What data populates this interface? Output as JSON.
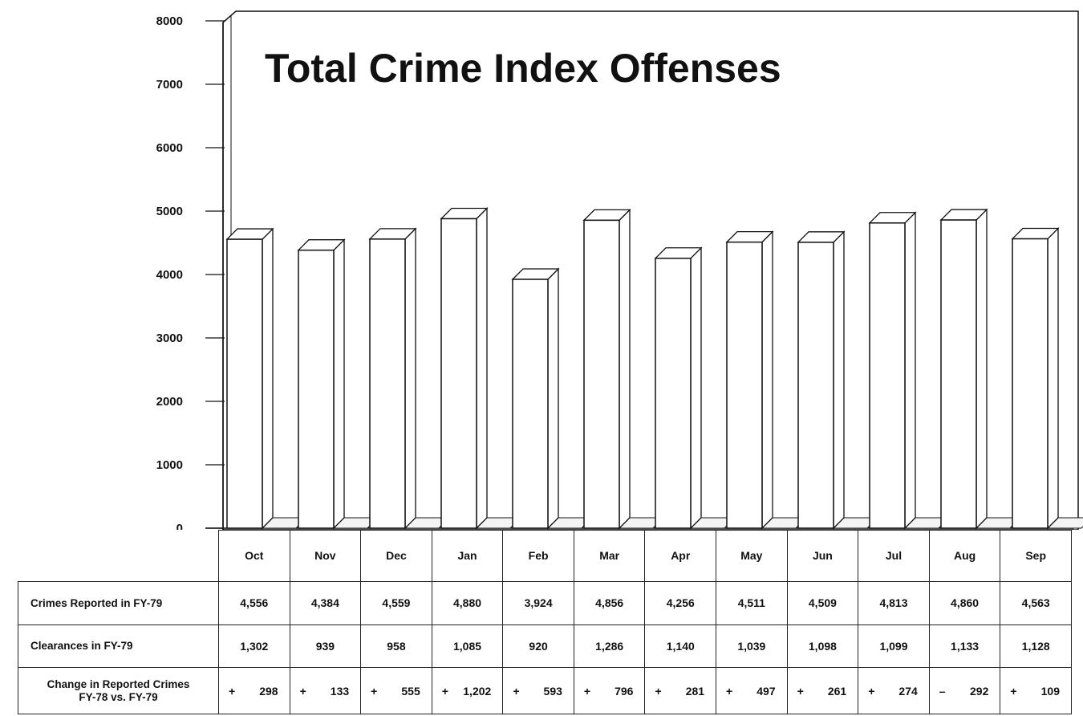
{
  "chart_data": {
    "type": "bar",
    "title": "Total Crime Index Offenses",
    "categories": [
      "Oct",
      "Nov",
      "Dec",
      "Jan",
      "Feb",
      "Mar",
      "Apr",
      "May",
      "Jun",
      "Jul",
      "Aug",
      "Sep"
    ],
    "values": [
      4556,
      4384,
      4559,
      4880,
      3924,
      4856,
      4256,
      4511,
      4509,
      4813,
      4860,
      4563
    ],
    "ylim": [
      0,
      8000
    ],
    "yticks": [
      "0",
      "1000",
      "2000",
      "3000",
      "4000",
      "5000",
      "6000",
      "7000",
      "8000"
    ],
    "grid": false,
    "style": "3d"
  },
  "table": {
    "rows": [
      {
        "label": "Crimes Reported in FY-79",
        "values": [
          "4,556",
          "4,384",
          "4,559",
          "4,880",
          "3,924",
          "4,856",
          "4,256",
          "4,511",
          "4,509",
          "4,813",
          "4,860",
          "4,563"
        ]
      },
      {
        "label": "Clearances in FY-79",
        "values": [
          "1,302",
          "939",
          "958",
          "1,085",
          "920",
          "1,286",
          "1,140",
          "1,039",
          "1,098",
          "1,099",
          "1,133",
          "1,128"
        ]
      },
      {
        "label_line1": "Change in Reported Crimes",
        "label_line2": "FY-78 vs. FY-79",
        "signs": [
          "+",
          "+",
          "+",
          "+",
          "+",
          "+",
          "+",
          "+",
          "+",
          "+",
          "–",
          "+"
        ],
        "values": [
          "298",
          "133",
          "555",
          "1,202",
          "593",
          "796",
          "281",
          "497",
          "261",
          "274",
          "292",
          "109"
        ]
      }
    ]
  }
}
